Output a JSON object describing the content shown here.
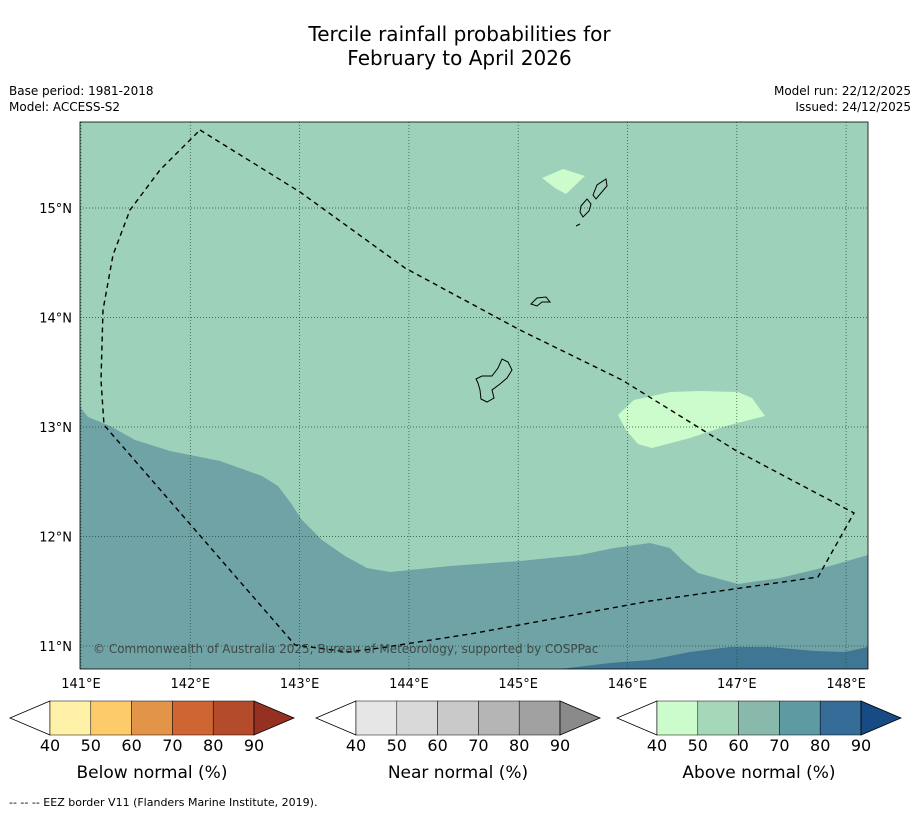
{
  "title_line1": "Tercile rainfall probabilities for",
  "title_line2": "February to April 2026",
  "base_period": "Base period: 1981-2018",
  "model": "Model: ACCESS-S2",
  "model_run": "Model run: 22/12/2025",
  "issued": "Issued: 24/12/2025",
  "copyright": "© Commonwealth of Australia 2025, Bureau of Meteorology, supported by COSPPac",
  "footer_note": "--  --  -- EEZ border V11 (Flanders Marine Institute, 2019).",
  "map": {
    "lon_range": [
      140.9,
      148.2
    ],
    "lat_range": [
      10.8,
      15.8
    ],
    "lon_ticks": [
      141,
      142,
      143,
      144,
      145,
      146,
      147,
      148
    ],
    "lon_labels": [
      "141°E",
      "142°E",
      "143°E",
      "144°E",
      "145°E",
      "146°E",
      "147°E",
      "148°E"
    ],
    "lat_ticks": [
      11,
      12,
      13,
      14,
      15
    ],
    "lat_labels": [
      "11°N",
      "12°N",
      "13°N",
      "14°N",
      "15°N"
    ],
    "grid": true
  },
  "colorbars": [
    {
      "label": "Below normal (%)",
      "ticks": [
        "40",
        "50",
        "60",
        "70",
        "80",
        "90"
      ],
      "colors": [
        "#fff1a8",
        "#fecb6a",
        "#e29548",
        "#cf6533",
        "#b44b2b",
        "#943121"
      ]
    },
    {
      "label": "Near normal (%)",
      "ticks": [
        "40",
        "50",
        "60",
        "70",
        "80",
        "90"
      ],
      "colors": [
        "#e6e6e6",
        "#d9d9d9",
        "#c9c9c9",
        "#b5b5b5",
        "#a1a1a1",
        "#8a8a8a"
      ]
    },
    {
      "label": "Above normal (%)",
      "ticks": [
        "40",
        "50",
        "60",
        "70",
        "80",
        "90"
      ],
      "colors": [
        "#ccfccc",
        "#a5d8b9",
        "#89b9aa",
        "#5d9aa2",
        "#366d98",
        "#184a84"
      ]
    }
  ],
  "colors": {
    "above_50": "#9dd1b9",
    "above_60": "#6fa3a5",
    "above_70": "#3f7693",
    "above_40": "#ccfccc"
  }
}
